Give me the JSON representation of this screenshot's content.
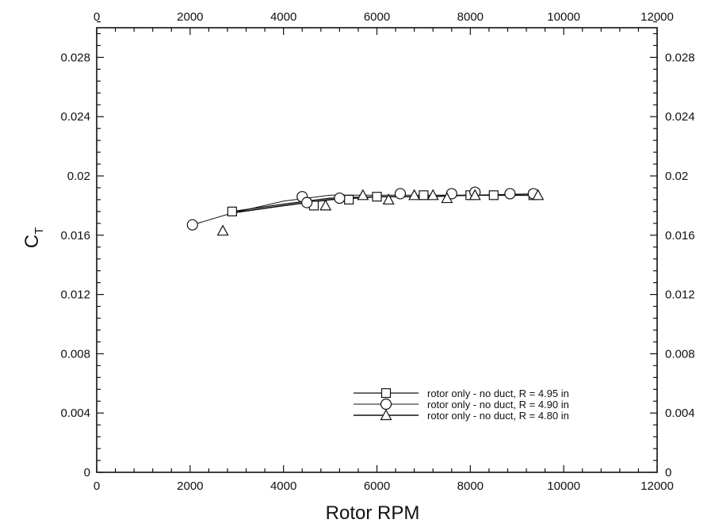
{
  "chart_data": {
    "type": "line",
    "xlabel": "Rotor RPM",
    "ylabel_main": "C",
    "ylabel_sub": "T",
    "xlim": [
      0,
      12000
    ],
    "ylim": [
      0,
      0.03
    ],
    "x_ticks": [
      0,
      2000,
      4000,
      6000,
      8000,
      10000,
      12000
    ],
    "x_tick_labels": [
      "0",
      "2000",
      "4000",
      "6000",
      "8000",
      "10000",
      "12000"
    ],
    "y_ticks": [
      0,
      0.004,
      0.008,
      0.012,
      0.016,
      0.02,
      0.024,
      0.028
    ],
    "y_tick_labels": [
      "0",
      "0.004",
      "0.008",
      "0.012",
      "0.016",
      "0.02",
      "0.024",
      "0.028"
    ],
    "top_axis_mirrored": true,
    "right_axis_mirrored": true,
    "grid": false,
    "legend_position": "bottom-right",
    "series": [
      {
        "name": "rotor only - no duct, R = 4.95 in",
        "marker": "square",
        "x": [
          2900,
          4650,
          5400,
          6000,
          7000,
          8000,
          8500,
          9350
        ],
        "y": [
          0.0176,
          0.018,
          0.0184,
          0.0186,
          0.0187,
          0.0187,
          0.0187,
          0.0187
        ],
        "line_x": [
          2900,
          4000,
          5000,
          6000,
          7000,
          8000,
          9400
        ],
        "line_y": [
          0.0176,
          0.0181,
          0.0185,
          0.0186,
          0.0186,
          0.0187,
          0.0187
        ]
      },
      {
        "name": "rotor only - no duct, R = 4.90 in",
        "marker": "circle",
        "x": [
          2050,
          4400,
          4500,
          5200,
          6500,
          7600,
          8100,
          8850,
          9350
        ],
        "y": [
          0.0167,
          0.0186,
          0.0182,
          0.0185,
          0.0188,
          0.0188,
          0.0189,
          0.0188,
          0.0188
        ],
        "line_x": [
          2050,
          2900,
          4000,
          5000,
          6000,
          7000,
          8000,
          9400
        ],
        "line_y": [
          0.0167,
          0.0175,
          0.0183,
          0.0187,
          0.0187,
          0.0187,
          0.0187,
          0.0188
        ]
      },
      {
        "name": "rotor only - no duct, R = 4.80 in",
        "marker": "triangle",
        "x": [
          2700,
          4900,
          5700,
          6250,
          6800,
          7200,
          7500,
          8100,
          9450
        ],
        "y": [
          0.0163,
          0.018,
          0.0187,
          0.0184,
          0.0187,
          0.0187,
          0.0185,
          0.0187,
          0.0187
        ],
        "line_x": [
          2900,
          4000,
          5000,
          6000,
          7000,
          8000,
          9450
        ],
        "line_y": [
          0.0175,
          0.018,
          0.0184,
          0.0186,
          0.0186,
          0.0187,
          0.0187
        ]
      }
    ]
  }
}
